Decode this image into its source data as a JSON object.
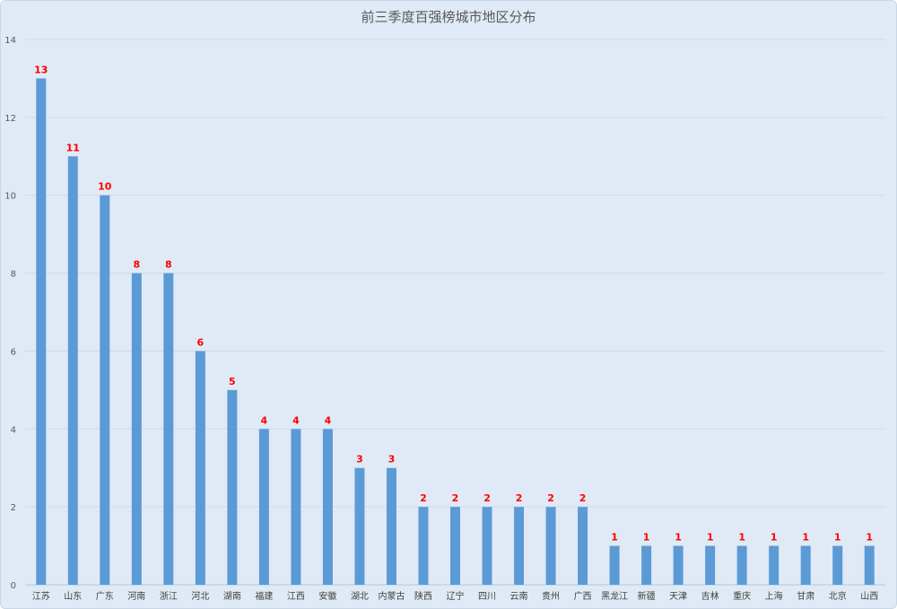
{
  "chart_data": {
    "type": "bar",
    "title": "前三季度百强榜城市地区分布",
    "xlabel": "",
    "ylabel": "",
    "ylim": [
      0,
      14
    ],
    "yticks": [
      0,
      2,
      4,
      6,
      8,
      10,
      12,
      14
    ],
    "grid": true,
    "legend": "none",
    "bar_color": "#5b9bd5",
    "label_color": "#ff0000",
    "categories": [
      "江苏",
      "山东",
      "广东",
      "河南",
      "浙江",
      "河北",
      "湖南",
      "福建",
      "江西",
      "安徽",
      "湖北",
      "内蒙古",
      "陕西",
      "辽宁",
      "四川",
      "云南",
      "贵州",
      "广西",
      "黑龙江",
      "新疆",
      "天津",
      "吉林",
      "重庆",
      "上海",
      "甘肃",
      "北京",
      "山西"
    ],
    "values": [
      13,
      11,
      10,
      8,
      8,
      6,
      5,
      4,
      4,
      4,
      3,
      3,
      2,
      2,
      2,
      2,
      2,
      2,
      1,
      1,
      1,
      1,
      1,
      1,
      1,
      1,
      1
    ]
  }
}
